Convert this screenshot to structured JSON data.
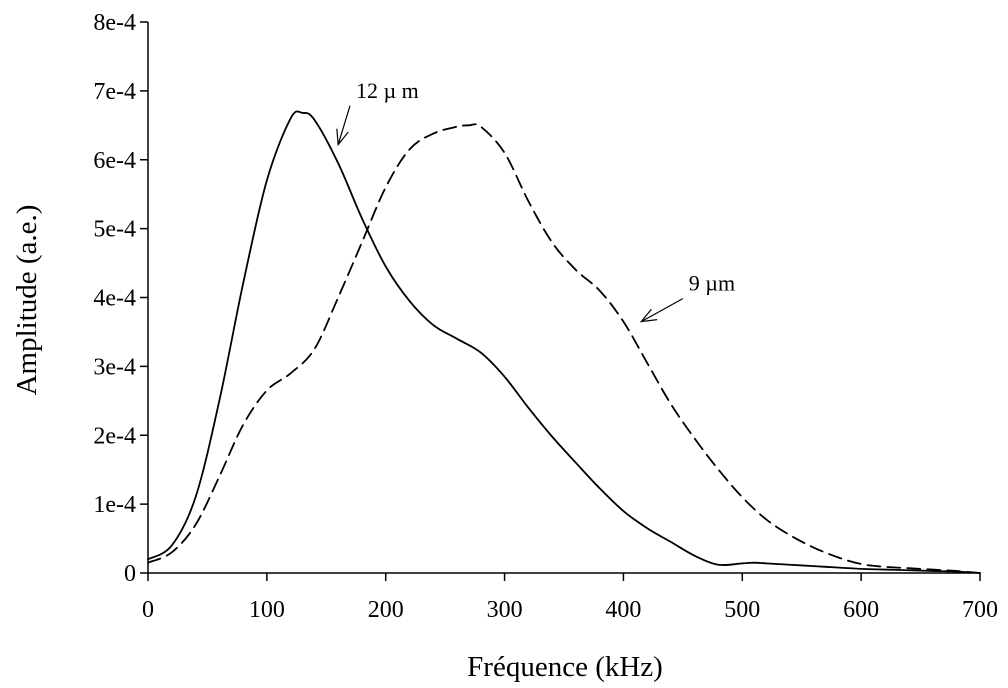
{
  "chart_data": {
    "type": "line",
    "title": "",
    "xlabel": "Fréquence (kHz)",
    "ylabel": "Amplitude (a.e.)",
    "xlim": [
      0,
      700
    ],
    "ylim": [
      0,
      0.0008
    ],
    "grid": false,
    "x_ticks": [
      {
        "value": 0,
        "label": "0"
      },
      {
        "value": 100,
        "label": "100"
      },
      {
        "value": 200,
        "label": "200"
      },
      {
        "value": 300,
        "label": "300"
      },
      {
        "value": 400,
        "label": "400"
      },
      {
        "value": 500,
        "label": "500"
      },
      {
        "value": 600,
        "label": "600"
      },
      {
        "value": 700,
        "label": "700"
      }
    ],
    "y_ticks": [
      {
        "value": 0,
        "label": "0"
      },
      {
        "value": 0.0001,
        "label": "1e-4"
      },
      {
        "value": 0.0002,
        "label": "2e-4"
      },
      {
        "value": 0.0003,
        "label": "3e-4"
      },
      {
        "value": 0.0004,
        "label": "4e-4"
      },
      {
        "value": 0.0005,
        "label": "5e-4"
      },
      {
        "value": 0.0006,
        "label": "6e-4"
      },
      {
        "value": 0.0007,
        "label": "7e-4"
      },
      {
        "value": 0.0008,
        "label": "8e-4"
      }
    ],
    "series": [
      {
        "style": "solid",
        "x": [
          0,
          20,
          40,
          60,
          80,
          100,
          120,
          130,
          140,
          160,
          180,
          200,
          220,
          240,
          260,
          280,
          300,
          320,
          340,
          360,
          380,
          400,
          420,
          440,
          460,
          480,
          500,
          510,
          520,
          540,
          560,
          580,
          600,
          620,
          640,
          660,
          680,
          700
        ],
        "y": [
          2e-05,
          4e-05,
          0.00011,
          0.00025,
          0.00042,
          0.00057,
          0.00066,
          0.000668,
          0.000658,
          0.000595,
          0.000515,
          0.000445,
          0.000395,
          0.00036,
          0.00034,
          0.00032,
          0.000285,
          0.00024,
          0.000198,
          0.00016,
          0.000123,
          9e-05,
          6.5e-05,
          4.5e-05,
          2.5e-05,
          1.2e-05,
          1.4e-05,
          1.5e-05,
          1.4e-05,
          1.2e-05,
          1e-05,
          8e-06,
          6e-06,
          5e-06,
          4e-06,
          3e-06,
          2e-06,
          0.0
        ]
      },
      {
        "style": "dashed",
        "x": [
          0,
          20,
          40,
          60,
          80,
          100,
          120,
          140,
          160,
          180,
          200,
          220,
          240,
          260,
          270,
          280,
          300,
          320,
          340,
          360,
          380,
          400,
          420,
          440,
          460,
          480,
          500,
          520,
          540,
          560,
          580,
          600,
          620,
          640,
          660,
          680,
          700
        ],
        "y": [
          1.5e-05,
          3e-05,
          7e-05,
          0.00014,
          0.000215,
          0.000265,
          0.00029,
          0.000325,
          0.0004,
          0.00048,
          0.00056,
          0.000615,
          0.000638,
          0.000648,
          0.00065,
          0.000648,
          0.00061,
          0.00054,
          0.00048,
          0.00044,
          0.00041,
          0.000365,
          0.000305,
          0.000245,
          0.000195,
          0.00015,
          0.00011,
          7.8e-05,
          5.5e-05,
          3.7e-05,
          2.3e-05,
          1.3e-05,
          9e-06,
          7e-06,
          5e-06,
          3e-06,
          0.0
        ]
      }
    ],
    "annotations": [
      {
        "text": "12 µ m",
        "points_to": {
          "x": 160,
          "y": 0.000622
        },
        "text_at": {
          "x": 175,
          "y": 0.00069
        }
      },
      {
        "text": "9 µm",
        "points_to": {
          "x": 415,
          "y": 0.000365
        },
        "text_at": {
          "x": 455,
          "y": 0.00041
        }
      }
    ]
  }
}
